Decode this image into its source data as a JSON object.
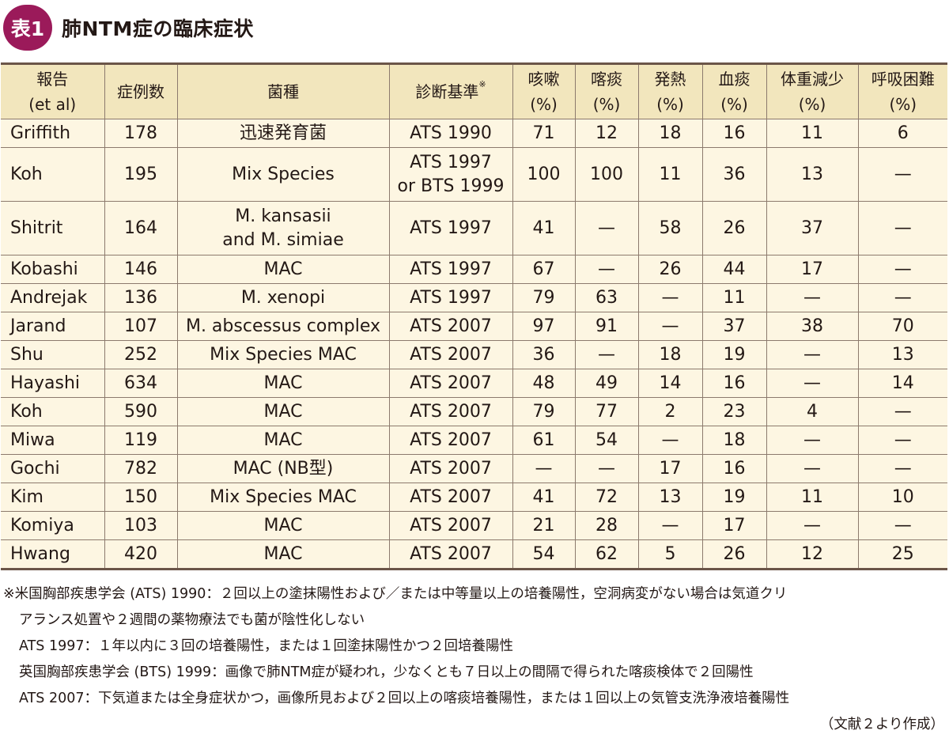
{
  "title": {
    "badge": "表1",
    "text": "肺NTM症の臨床症状"
  },
  "table": {
    "headers": [
      {
        "l1": "報告",
        "l2": "(et al)"
      },
      {
        "l1": "症例数",
        "l2": ""
      },
      {
        "l1": "菌種",
        "l2": ""
      },
      {
        "l1": "診断基準",
        "l2": "",
        "mark": "※"
      },
      {
        "l1": "咳嗽",
        "l2": "(%)"
      },
      {
        "l1": "喀痰",
        "l2": "(%)"
      },
      {
        "l1": "発熱",
        "l2": "(%)"
      },
      {
        "l1": "血痰",
        "l2": "(%)"
      },
      {
        "l1": "体重減少",
        "l2": "(%)"
      },
      {
        "l1": "呼吸困難",
        "l2": "(%)"
      }
    ],
    "rows": [
      {
        "report": "Griffith",
        "cases": "178",
        "species": [
          "迅速発育菌"
        ],
        "criteria": [
          "ATS 1990"
        ],
        "cough": "71",
        "sputum": "12",
        "fever": "18",
        "hemoptysis": "16",
        "weightloss": "11",
        "dyspnea": "6"
      },
      {
        "report": "Koh",
        "cases": "195",
        "species": [
          "Mix Species"
        ],
        "criteria": [
          "ATS 1997",
          "or BTS 1999"
        ],
        "cough": "100",
        "sputum": "100",
        "fever": "11",
        "hemoptysis": "36",
        "weightloss": "13",
        "dyspnea": "—"
      },
      {
        "report": "Shitrit",
        "cases": "164",
        "species": [
          "M. kansasii",
          "and M. simiae"
        ],
        "criteria": [
          "ATS 1997"
        ],
        "cough": "41",
        "sputum": "—",
        "fever": "58",
        "hemoptysis": "26",
        "weightloss": "37",
        "dyspnea": "—"
      },
      {
        "report": "Kobashi",
        "cases": "146",
        "species": [
          "MAC"
        ],
        "criteria": [
          "ATS 1997"
        ],
        "cough": "67",
        "sputum": "—",
        "fever": "26",
        "hemoptysis": "44",
        "weightloss": "17",
        "dyspnea": "—"
      },
      {
        "report": "Andrejak",
        "cases": "136",
        "species": [
          "M. xenopi"
        ],
        "criteria": [
          "ATS 1997"
        ],
        "cough": "79",
        "sputum": "63",
        "fever": "—",
        "hemoptysis": "11",
        "weightloss": "—",
        "dyspnea": "—"
      },
      {
        "report": "Jarand",
        "cases": "107",
        "species": [
          "M. abscessus complex"
        ],
        "criteria": [
          "ATS 2007"
        ],
        "cough": "97",
        "sputum": "91",
        "fever": "—",
        "hemoptysis": "37",
        "weightloss": "38",
        "dyspnea": "70"
      },
      {
        "report": "Shu",
        "cases": "252",
        "species": [
          "Mix Species MAC"
        ],
        "criteria": [
          "ATS 2007"
        ],
        "cough": "36",
        "sputum": "—",
        "fever": "18",
        "hemoptysis": "19",
        "weightloss": "—",
        "dyspnea": "13"
      },
      {
        "report": "Hayashi",
        "cases": "634",
        "species": [
          "MAC"
        ],
        "criteria": [
          "ATS 2007"
        ],
        "cough": "48",
        "sputum": "49",
        "fever": "14",
        "hemoptysis": "16",
        "weightloss": "—",
        "dyspnea": "14"
      },
      {
        "report": "Koh",
        "cases": "590",
        "species": [
          "MAC"
        ],
        "criteria": [
          "ATS 2007"
        ],
        "cough": "79",
        "sputum": "77",
        "fever": "2",
        "hemoptysis": "23",
        "weightloss": "4",
        "dyspnea": "—"
      },
      {
        "report": "Miwa",
        "cases": "119",
        "species": [
          "MAC"
        ],
        "criteria": [
          "ATS 2007"
        ],
        "cough": "61",
        "sputum": "54",
        "fever": "—",
        "hemoptysis": "18",
        "weightloss": "—",
        "dyspnea": "—"
      },
      {
        "report": "Gochi",
        "cases": "782",
        "species": [
          "MAC (NB型)"
        ],
        "criteria": [
          "ATS 2007"
        ],
        "cough": "—",
        "sputum": "—",
        "fever": "17",
        "hemoptysis": "16",
        "weightloss": "—",
        "dyspnea": "—"
      },
      {
        "report": "Kim",
        "cases": "150",
        "species": [
          "Mix Species MAC"
        ],
        "criteria": [
          "ATS 2007"
        ],
        "cough": "41",
        "sputum": "72",
        "fever": "13",
        "hemoptysis": "19",
        "weightloss": "11",
        "dyspnea": "10"
      },
      {
        "report": "Komiya",
        "cases": "103",
        "species": [
          "MAC"
        ],
        "criteria": [
          "ATS 2007"
        ],
        "cough": "21",
        "sputum": "28",
        "fever": "—",
        "hemoptysis": "17",
        "weightloss": "—",
        "dyspnea": "—"
      },
      {
        "report": "Hwang",
        "cases": "420",
        "species": [
          "MAC"
        ],
        "criteria": [
          "ATS 2007"
        ],
        "cough": "54",
        "sputum": "62",
        "fever": "5",
        "hemoptysis": "26",
        "weightloss": "12",
        "dyspnea": "25"
      }
    ]
  },
  "notes": {
    "line1": "※米国胸部疾患学会 (ATS) 1990：２回以上の塗抹陽性および／または中等量以上の培養陽性，空洞病変がない場合は気道クリ",
    "line2": "アランス処置や２週間の薬物療法でも菌が陰性化しない",
    "line3": "ATS 1997：１年以内に３回の培養陽性，または１回塗抹陽性かつ２回培養陽性",
    "line4": "英国胸部疾患学会 (BTS) 1999：画像で肺NTM症が疑われ，少なくとも７日以上の間隔で得られた喀痰検体で２回陽性",
    "line5": "ATS 2007：下気道または全身症状かつ，画像所見および２回以上の喀痰培養陽性，または１回以上の気管支洗浄液培養陽性",
    "source": "（文献２より作成）"
  }
}
